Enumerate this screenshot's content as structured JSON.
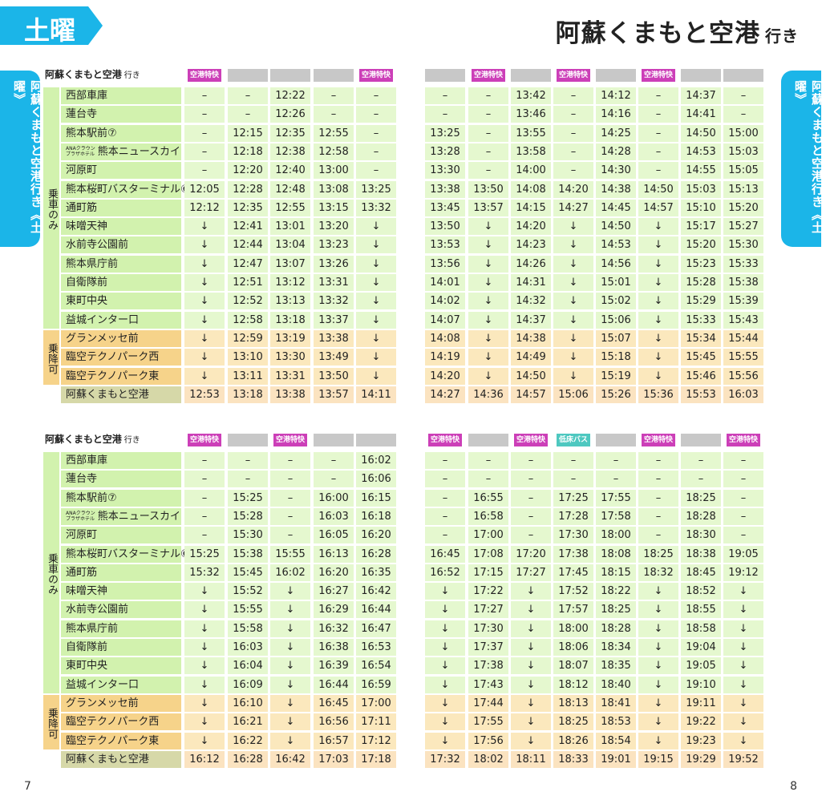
{
  "header": {
    "day_label": "土曜",
    "title": "阿蘇くまもと空港",
    "title_suffix": "行き",
    "side_tab_left": "阿蘇くまもと空港行き《土曜》",
    "side_tab_right": "阿蘇くまもと空港行き《土曜》"
  },
  "footer": {
    "page_left": "7",
    "page_right": "8"
  },
  "colors": {
    "accent": "#1bb5e8",
    "express": "#cc3fb8",
    "lowfloor": "#4ec8c0",
    "plain_header": "#c8c8c8"
  },
  "groups": {
    "board_only": "乗車のみ",
    "board_alight": "乗降可"
  },
  "tables": [
    {
      "title": "阿蘇くまもと空港",
      "title_suffix": "行き",
      "stops": [
        "西部車庫",
        "蓮台寺",
        "熊本駅前⑦",
        "熊本ニュースカイ",
        "河原町",
        "熊本桜町バスターミナル⑥",
        "通町筋",
        "味噌天神",
        "水前寺公園前",
        "熊本県庁前",
        "自衛隊前",
        "東町中央",
        "益城インター口",
        "グランメッセ前",
        "臨空テクノパーク西",
        "臨空テクノパーク東",
        "阿蘇くまもと空港"
      ],
      "stop_prefix": {
        "line1": "ANAクラウン",
        "line2": "プラザホテル"
      },
      "columns": [
        {
          "label": "空港特快",
          "type": "express",
          "times": [
            "–",
            "–",
            "–",
            "–",
            "–",
            "12:05",
            "12:12",
            "↓",
            "↓",
            "↓",
            "↓",
            "↓",
            "↓",
            "↓",
            "↓",
            "↓",
            "12:53"
          ]
        },
        {
          "label": "",
          "type": "plain",
          "times": [
            "–",
            "–",
            "12:15",
            "12:18",
            "12:20",
            "12:28",
            "12:35",
            "12:41",
            "12:44",
            "12:47",
            "12:51",
            "12:52",
            "12:58",
            "12:59",
            "13:10",
            "13:11",
            "13:18"
          ]
        },
        {
          "label": "",
          "type": "plain",
          "times": [
            "12:22",
            "12:26",
            "12:35",
            "12:38",
            "12:40",
            "12:48",
            "12:55",
            "13:01",
            "13:04",
            "13:07",
            "13:12",
            "13:13",
            "13:18",
            "13:19",
            "13:30",
            "13:31",
            "13:38"
          ]
        },
        {
          "label": "",
          "type": "plain",
          "times": [
            "–",
            "–",
            "12:55",
            "12:58",
            "13:00",
            "13:08",
            "13:15",
            "13:20",
            "13:23",
            "13:26",
            "13:31",
            "13:32",
            "13:37",
            "13:38",
            "13:49",
            "13:50",
            "13:57"
          ]
        },
        {
          "label": "空港特快",
          "type": "express",
          "times": [
            "–",
            "–",
            "–",
            "–",
            "–",
            "13:25",
            "13:32",
            "↓",
            "↓",
            "↓",
            "↓",
            "↓",
            "↓",
            "↓",
            "↓",
            "↓",
            "14:11"
          ]
        },
        {
          "label": "",
          "type": "plain",
          "times": [
            "–",
            "–",
            "13:25",
            "13:28",
            "13:30",
            "13:38",
            "13:45",
            "13:50",
            "13:53",
            "13:56",
            "14:01",
            "14:02",
            "14:07",
            "14:08",
            "14:19",
            "14:20",
            "14:27"
          ]
        },
        {
          "label": "空港特快",
          "type": "express",
          "times": [
            "–",
            "–",
            "–",
            "–",
            "–",
            "13:50",
            "13:57",
            "↓",
            "↓",
            "↓",
            "↓",
            "↓",
            "↓",
            "↓",
            "↓",
            "↓",
            "14:36"
          ]
        },
        {
          "label": "",
          "type": "plain",
          "times": [
            "13:42",
            "13:46",
            "13:55",
            "13:58",
            "14:00",
            "14:08",
            "14:15",
            "14:20",
            "14:23",
            "14:26",
            "14:31",
            "14:32",
            "14:37",
            "14:38",
            "14:49",
            "14:50",
            "14:57"
          ]
        },
        {
          "label": "空港特快",
          "type": "express",
          "times": [
            "–",
            "–",
            "–",
            "–",
            "–",
            "14:20",
            "14:27",
            "↓",
            "↓",
            "↓",
            "↓",
            "↓",
            "↓",
            "↓",
            "↓",
            "↓",
            "15:06"
          ]
        },
        {
          "label": "",
          "type": "plain",
          "times": [
            "14:12",
            "14:16",
            "14:25",
            "14:28",
            "14:30",
            "14:38",
            "14:45",
            "14:50",
            "14:53",
            "14:56",
            "15:01",
            "15:02",
            "15:06",
            "15:07",
            "15:18",
            "15:19",
            "15:26"
          ]
        },
        {
          "label": "空港特快",
          "type": "express",
          "times": [
            "–",
            "–",
            "–",
            "–",
            "–",
            "14:50",
            "14:57",
            "↓",
            "↓",
            "↓",
            "↓",
            "↓",
            "↓",
            "↓",
            "↓",
            "↓",
            "15:36"
          ]
        },
        {
          "label": "",
          "type": "plain",
          "times": [
            "14:37",
            "14:41",
            "14:50",
            "14:53",
            "14:55",
            "15:03",
            "15:10",
            "15:17",
            "15:20",
            "15:23",
            "15:28",
            "15:29",
            "15:33",
            "15:34",
            "15:45",
            "15:46",
            "15:53"
          ]
        },
        {
          "label": "",
          "type": "plain",
          "times": [
            "–",
            "–",
            "15:00",
            "15:03",
            "15:05",
            "15:13",
            "15:20",
            "15:27",
            "15:30",
            "15:33",
            "15:38",
            "15:39",
            "15:43",
            "15:44",
            "15:55",
            "15:56",
            "16:03"
          ]
        }
      ]
    },
    {
      "title": "阿蘇くまもと空港",
      "title_suffix": "行き",
      "stops": [
        "西部車庫",
        "蓮台寺",
        "熊本駅前⑦",
        "熊本ニュースカイ",
        "河原町",
        "熊本桜町バスターミナル⑥",
        "通町筋",
        "味噌天神",
        "水前寺公園前",
        "熊本県庁前",
        "自衛隊前",
        "東町中央",
        "益城インター口",
        "グランメッセ前",
        "臨空テクノパーク西",
        "臨空テクノパーク東",
        "阿蘇くまもと空港"
      ],
      "stop_prefix": {
        "line1": "ANAクラウン",
        "line2": "プラザホテル"
      },
      "columns": [
        {
          "label": "空港特快",
          "type": "express",
          "times": [
            "–",
            "–",
            "–",
            "–",
            "–",
            "15:25",
            "15:32",
            "↓",
            "↓",
            "↓",
            "↓",
            "↓",
            "↓",
            "↓",
            "↓",
            "↓",
            "16:12"
          ]
        },
        {
          "label": "",
          "type": "plain",
          "times": [
            "–",
            "–",
            "15:25",
            "15:28",
            "15:30",
            "15:38",
            "15:45",
            "15:52",
            "15:55",
            "15:58",
            "16:03",
            "16:04",
            "16:09",
            "16:10",
            "16:21",
            "16:22",
            "16:28"
          ]
        },
        {
          "label": "空港特快",
          "type": "express",
          "times": [
            "–",
            "–",
            "–",
            "–",
            "–",
            "15:55",
            "16:02",
            "↓",
            "↓",
            "↓",
            "↓",
            "↓",
            "↓",
            "↓",
            "↓",
            "↓",
            "16:42"
          ]
        },
        {
          "label": "",
          "type": "plain",
          "times": [
            "–",
            "–",
            "16:00",
            "16:03",
            "16:05",
            "16:13",
            "16:20",
            "16:27",
            "16:29",
            "16:32",
            "16:38",
            "16:39",
            "16:44",
            "16:45",
            "16:56",
            "16:57",
            "17:03"
          ]
        },
        {
          "label": "",
          "type": "plain",
          "times": [
            "16:02",
            "16:06",
            "16:15",
            "16:18",
            "16:20",
            "16:28",
            "16:35",
            "16:42",
            "16:44",
            "16:47",
            "16:53",
            "16:54",
            "16:59",
            "17:00",
            "17:11",
            "17:12",
            "17:18"
          ]
        },
        {
          "label": "空港特快",
          "type": "express",
          "times": [
            "–",
            "–",
            "–",
            "–",
            "–",
            "16:45",
            "16:52",
            "↓",
            "↓",
            "↓",
            "↓",
            "↓",
            "↓",
            "↓",
            "↓",
            "↓",
            "17:32"
          ]
        },
        {
          "label": "",
          "type": "plain",
          "times": [
            "–",
            "–",
            "16:55",
            "16:58",
            "17:00",
            "17:08",
            "17:15",
            "17:22",
            "17:27",
            "17:30",
            "17:37",
            "17:38",
            "17:43",
            "17:44",
            "17:55",
            "17:56",
            "18:02"
          ]
        },
        {
          "label": "空港特快",
          "type": "express",
          "times": [
            "–",
            "–",
            "–",
            "–",
            "–",
            "17:20",
            "17:27",
            "↓",
            "↓",
            "↓",
            "↓",
            "↓",
            "↓",
            "↓",
            "↓",
            "↓",
            "18:11"
          ]
        },
        {
          "label": "低床バス",
          "type": "lowfloor",
          "times": [
            "–",
            "–",
            "17:25",
            "17:28",
            "17:30",
            "17:38",
            "17:45",
            "17:52",
            "17:57",
            "18:00",
            "18:06",
            "18:07",
            "18:12",
            "18:13",
            "18:25",
            "18:26",
            "18:33"
          ]
        },
        {
          "label": "",
          "type": "plain",
          "times": [
            "–",
            "–",
            "17:55",
            "17:58",
            "18:00",
            "18:08",
            "18:15",
            "18:22",
            "18:25",
            "18:28",
            "18:34",
            "18:35",
            "18:40",
            "18:41",
            "18:53",
            "18:54",
            "19:01"
          ]
        },
        {
          "label": "空港特快",
          "type": "express",
          "times": [
            "–",
            "–",
            "–",
            "–",
            "–",
            "18:25",
            "18:32",
            "↓",
            "↓",
            "↓",
            "↓",
            "↓",
            "↓",
            "↓",
            "↓",
            "↓",
            "19:15"
          ]
        },
        {
          "label": "",
          "type": "plain",
          "times": [
            "–",
            "–",
            "18:25",
            "18:28",
            "18:30",
            "18:38",
            "18:45",
            "18:52",
            "18:55",
            "18:58",
            "19:04",
            "19:05",
            "19:10",
            "19:11",
            "19:22",
            "19:23",
            "19:29"
          ]
        },
        {
          "label": "空港特快",
          "type": "express",
          "times": [
            "–",
            "–",
            "–",
            "–",
            "–",
            "19:05",
            "19:12",
            "↓",
            "↓",
            "↓",
            "↓",
            "↓",
            "↓",
            "↓",
            "↓",
            "↓",
            "19:52"
          ]
        }
      ]
    }
  ]
}
